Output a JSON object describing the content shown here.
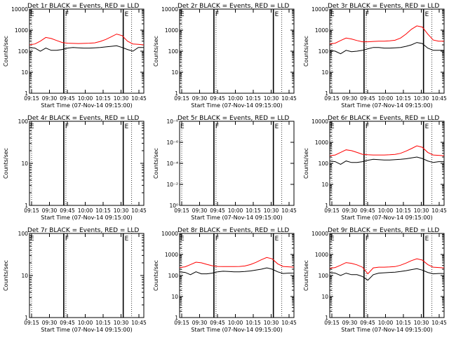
{
  "chart_data": [
    {
      "type": "line",
      "title": "Det 1r BLACK = Events, RED = LLD",
      "scale": "log",
      "ylim": [
        1,
        10000
      ],
      "yticks": [
        "1",
        "10",
        "100",
        "1000",
        "10000"
      ],
      "curves": true,
      "night": [
        0.3,
        0.82
      ],
      "night_labels": [
        "F",
        "E"
      ],
      "series": [
        {
          "name": "Events",
          "color": "#000000",
          "values": [
            150,
            140,
            100,
            140,
            110,
            110,
            120,
            140,
            150,
            145,
            140,
            140,
            145,
            150,
            160,
            170,
            180,
            150,
            120,
            100,
            150,
            150
          ]
        },
        {
          "name": "LLD",
          "color": "#ff0000",
          "values": [
            200,
            220,
            300,
            450,
            400,
            320,
            260,
            240,
            235,
            230,
            235,
            240,
            250,
            290,
            360,
            480,
            650,
            550,
            300,
            220,
            210,
            200
          ]
        }
      ]
    },
    {
      "type": "line",
      "title": "Det 2r BLACK = Events, RED = LLD",
      "scale": "log",
      "ylim": [
        1,
        10000
      ],
      "yticks": [
        "1",
        "10",
        "100",
        "1000",
        "10000"
      ],
      "curves": false,
      "night": [
        0.3,
        0.82
      ],
      "night_labels": [
        "F",
        "E"
      ],
      "series": []
    },
    {
      "type": "line",
      "title": "Det 3r BLACK = Events, RED = LLD",
      "scale": "log",
      "ylim": [
        1,
        10000
      ],
      "yticks": [
        "1",
        "10",
        "100",
        "1000",
        "10000"
      ],
      "curves": true,
      "night": [
        0.3,
        0.82
      ],
      "night_labels": [
        "F",
        "E"
      ],
      "series": [
        {
          "name": "Events",
          "color": "#000000",
          "values": [
            110,
            100,
            75,
            110,
            95,
            100,
            110,
            130,
            150,
            150,
            140,
            140,
            145,
            150,
            170,
            200,
            260,
            230,
            140,
            110,
            110,
            110
          ]
        },
        {
          "name": "LLD",
          "color": "#ff0000",
          "values": [
            220,
            240,
            320,
            420,
            380,
            320,
            280,
            280,
            290,
            300,
            300,
            310,
            330,
            420,
            650,
            1100,
            1600,
            1400,
            650,
            340,
            300,
            300
          ]
        }
      ]
    },
    {
      "type": "line",
      "title": "Det 4r BLACK = Events, RED = LLD",
      "scale": "log",
      "ylim": [
        1,
        100
      ],
      "yticks": [
        "1",
        "10",
        "100"
      ],
      "curves": false,
      "night": [
        0.3,
        0.82
      ],
      "night_labels": [
        "F",
        "E"
      ],
      "series": []
    },
    {
      "type": "line",
      "title": "Det 5r BLACK = Events, RED = LLD",
      "scale": "log",
      "ylim": [
        1,
        1e-08
      ],
      "yticks": [
        "10⁰",
        "10⁻²",
        "10⁻⁴",
        "10⁻⁶",
        "10⁻⁸"
      ],
      "curves": false,
      "night": [
        0.3,
        0.82
      ],
      "night_labels": [
        "F",
        "E"
      ],
      "series": []
    },
    {
      "type": "line",
      "title": "Det 6r BLACK = Events, RED = LLD",
      "scale": "log",
      "ylim": [
        1,
        10000
      ],
      "yticks": [
        "1",
        "10",
        "100",
        "1000",
        "10000"
      ],
      "curves": true,
      "night": [
        0.3,
        0.82
      ],
      "night_labels": [
        "F",
        "E"
      ],
      "series": [
        {
          "name": "Events",
          "color": "#000000",
          "values": [
            130,
            120,
            90,
            130,
            110,
            110,
            120,
            140,
            155,
            150,
            145,
            145,
            150,
            155,
            165,
            180,
            200,
            170,
            130,
            110,
            120,
            120
          ]
        },
        {
          "name": "LLD",
          "color": "#ff0000",
          "values": [
            230,
            250,
            330,
            440,
            400,
            330,
            270,
            255,
            250,
            250,
            250,
            255,
            265,
            300,
            380,
            500,
            680,
            580,
            330,
            250,
            240,
            230
          ]
        }
      ]
    },
    {
      "type": "line",
      "title": "Det 7r BLACK = Events, RED = LLD",
      "scale": "log",
      "ylim": [
        1,
        100
      ],
      "yticks": [
        "1",
        "10",
        "100"
      ],
      "curves": false,
      "night": [
        0.3,
        0.82
      ],
      "night_labels": [
        "F",
        "E"
      ],
      "series": []
    },
    {
      "type": "line",
      "title": "Det 8r BLACK = Events, RED = LLD",
      "scale": "log",
      "ylim": [
        1,
        10000
      ],
      "yticks": [
        "1",
        "10",
        "100",
        "1000",
        "10000"
      ],
      "curves": true,
      "night": [
        0.3,
        0.82
      ],
      "night_labels": [
        "F",
        "E"
      ],
      "series": [
        {
          "name": "Events",
          "color": "#000000",
          "values": [
            150,
            140,
            110,
            150,
            120,
            120,
            130,
            150,
            160,
            155,
            150,
            150,
            155,
            165,
            180,
            200,
            230,
            200,
            150,
            125,
            130,
            130
          ]
        },
        {
          "name": "LLD",
          "color": "#ff0000",
          "values": [
            240,
            260,
            330,
            430,
            400,
            340,
            290,
            270,
            265,
            265,
            265,
            270,
            285,
            330,
            420,
            560,
            720,
            620,
            360,
            270,
            260,
            250
          ]
        }
      ]
    },
    {
      "type": "line",
      "title": "Det 9r BLACK = Events, RED = LLD",
      "scale": "log",
      "ylim": [
        1,
        10000
      ],
      "yticks": [
        "1",
        "10",
        "100",
        "1000",
        "10000"
      ],
      "curves": true,
      "night": [
        0.3,
        0.82
      ],
      "night_labels": [
        "F",
        "E"
      ],
      "series": [
        {
          "name": "Events",
          "color": "#000000",
          "values": [
            140,
            130,
            100,
            130,
            110,
            110,
            90,
            60,
            110,
            130,
            135,
            140,
            145,
            155,
            170,
            190,
            210,
            180,
            140,
            120,
            125,
            125
          ]
        },
        {
          "name": "LLD",
          "color": "#ff0000",
          "values": [
            220,
            240,
            310,
            410,
            380,
            320,
            250,
            120,
            230,
            250,
            250,
            255,
            265,
            310,
            390,
            510,
            620,
            540,
            330,
            250,
            240,
            230
          ]
        }
      ]
    }
  ],
  "x_axis": {
    "tick_labels": [
      "09:15",
      "09:30",
      "09:45",
      "10:00",
      "10:15",
      "10:30",
      "10:45"
    ],
    "label": "Start Time (07-Nov-14 09:15:00)"
  },
  "y_axis_label": "Counts/sec"
}
